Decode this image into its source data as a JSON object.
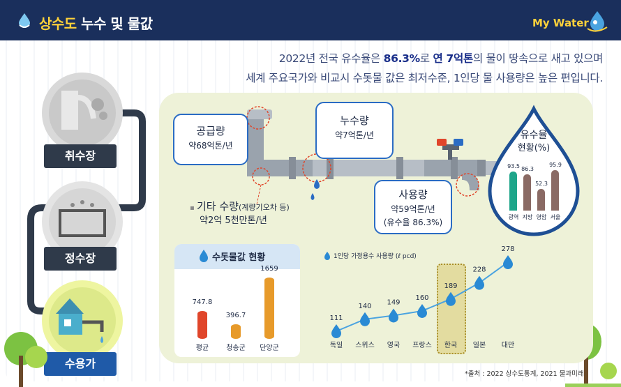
{
  "header": {
    "title_highlight": "상수도",
    "title_rest": " 누수 및 물값",
    "brand": "My Water"
  },
  "intro": {
    "line1_a": "2022년 전국 유수율은 ",
    "line1_b": "86.3%",
    "line1_c": "로 ",
    "line1_d": "연 7억톤",
    "line1_e": "의 물이 땅속으로 새고 있으며",
    "line2": "세계 주요국가와 비교시 수돗물 값은 최저수준, 1인당 물 사용량은 높은 편입니다."
  },
  "stages": [
    "취수장",
    "정수장",
    "수용가"
  ],
  "pipe": {
    "supply_title": "공급량",
    "supply_value": "약68억톤/년",
    "leak_title": "누수량",
    "leak_value": "약7억톤/년",
    "use_title": "사용량",
    "use_value": "약59억톤/년",
    "use_rate": "(유수율 86.3%)",
    "other_title": "기타 수량",
    "other_note": "(계량기오차 등)",
    "other_value": "약2억 5천만톤/년"
  },
  "revenue": {
    "title_line1": "유수율",
    "title_line2": "현황(%)",
    "items": [
      {
        "label": "광역",
        "value": 93.5,
        "color": "#1ea58a"
      },
      {
        "label": "지방",
        "value": 86.3,
        "color": "#8a6a64"
      },
      {
        "label": "영암",
        "value": 52.3,
        "color": "#8a6a64"
      },
      {
        "label": "서울",
        "value": 95.9,
        "color": "#8a6a64"
      }
    ],
    "value_labels": [
      "93.5",
      "86.3",
      "52.3",
      "95.9"
    ]
  },
  "price": {
    "title": "수돗물값 현황",
    "items": [
      {
        "label": "평균",
        "value": 747.8,
        "color": "#e0452a"
      },
      {
        "label": "청송군",
        "value": 396.7,
        "color": "#e79a2a"
      },
      {
        "label": "단양군",
        "value": 1659,
        "color": "#e79a2a"
      }
    ],
    "value_labels": [
      "747.8",
      "396.7",
      "1659"
    ]
  },
  "usage": {
    "title": "1인당 가정용수 사용량 (ℓ pcd)"
  },
  "chart_data": {
    "type": "line",
    "title": "1인당 가정용수 사용량 (ℓ pcd)",
    "categories": [
      "독일",
      "스위스",
      "영국",
      "프랑스",
      "한국",
      "일본",
      "대만"
    ],
    "values": [
      111,
      140,
      149,
      160,
      189,
      228,
      278
    ],
    "value_labels": [
      "111",
      "140",
      "149",
      "160",
      "189",
      "228",
      "278"
    ],
    "highlight": "한국",
    "line_color": "#4aa3e0"
  },
  "source": "*출처 : 2022 상수도통계, 2021 물과미래"
}
